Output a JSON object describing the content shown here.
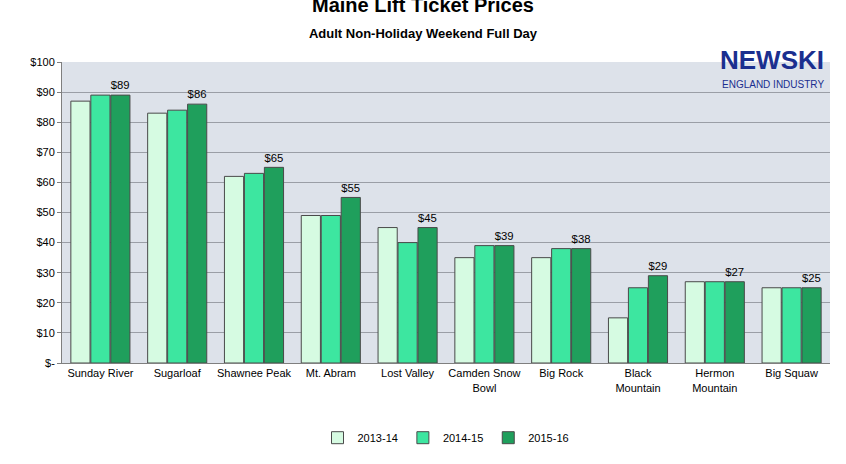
{
  "chart_data": {
    "type": "bar",
    "title": "Maine Lift Ticket Prices",
    "subtitle": "Adult Non-Holiday Weekend Full Day",
    "annotations": [
      "NEWSKI",
      "ENGLAND INDUSTRY"
    ],
    "categories": [
      "Sunday River",
      "Sugarloaf",
      "Shawnee Peak",
      "Mt. Abram",
      "Lost Valley",
      "Camden Snow Bowl",
      "Big Rock",
      "Black Mountain",
      "Hermon Mountain",
      "Big Squaw"
    ],
    "series": [
      {
        "name": "2013-14",
        "color": "#d6fbe2",
        "values": [
          87,
          83,
          62,
          49,
          45,
          35,
          35,
          15,
          27,
          25
        ]
      },
      {
        "name": "2014-15",
        "color": "#3de6a0",
        "values": [
          89,
          84,
          63,
          49,
          40,
          39,
          38,
          25,
          27,
          25
        ]
      },
      {
        "name": "2015-16",
        "color": "#1f9f5c",
        "values": [
          89,
          86,
          65,
          55,
          45,
          39,
          38,
          29,
          27,
          25
        ],
        "data_labels": true,
        "value_labels": [
          "$89",
          "$86",
          "$65",
          "$55",
          "$45",
          "$39",
          "$38",
          "$29",
          "$27",
          "$25"
        ]
      }
    ],
    "ylim": [
      0,
      100
    ],
    "yticks": [
      {
        "value": 0,
        "label": "$-"
      },
      {
        "value": 10,
        "label": "$10"
      },
      {
        "value": 20,
        "label": "$20"
      },
      {
        "value": 30,
        "label": "$30"
      },
      {
        "value": 40,
        "label": "$40"
      },
      {
        "value": 50,
        "label": "$50"
      },
      {
        "value": 60,
        "label": "$60"
      },
      {
        "value": 70,
        "label": "$70"
      },
      {
        "value": 80,
        "label": "$80"
      },
      {
        "value": 90,
        "label": "$90"
      },
      {
        "value": 100,
        "label": "$100"
      }
    ],
    "grid": true,
    "legend": "bottom"
  }
}
